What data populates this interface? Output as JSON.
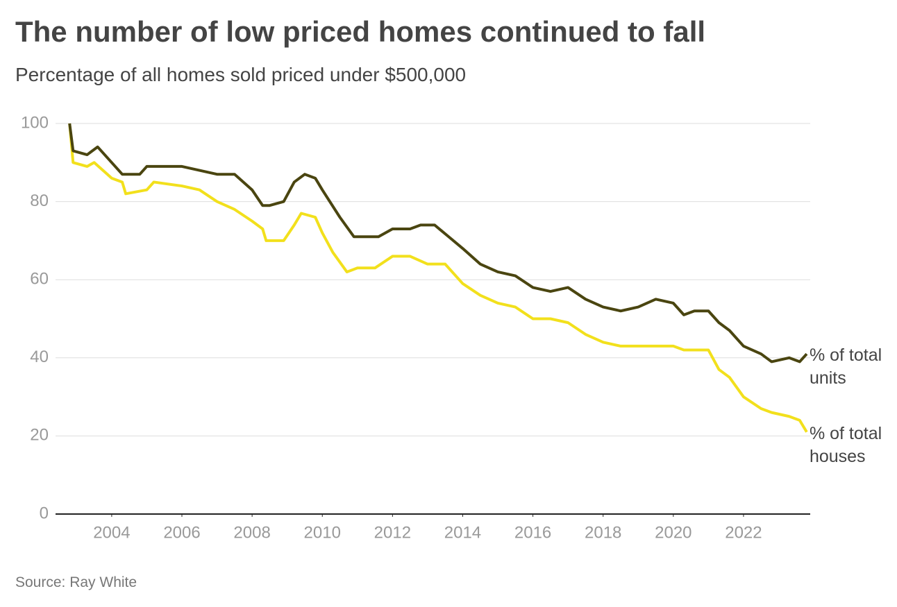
{
  "chart_data": {
    "type": "line",
    "title": "The number of low priced homes continued to fall",
    "subtitle": "Percentage of all homes sold priced under $500,000",
    "source": "Source: Ray White",
    "xlim": [
      2002.4,
      2023.9
    ],
    "xticks": [
      2004,
      2006,
      2008,
      2010,
      2012,
      2014,
      2016,
      2018,
      2020,
      2022
    ],
    "ylim": [
      0,
      100
    ],
    "yticks": [
      0,
      20,
      40,
      60,
      80,
      100
    ],
    "grid": true,
    "series": [
      {
        "name": "% of total units",
        "color": "#4a4510",
        "x": [
          2002.8,
          2002.9,
          2003.3,
          2003.6,
          2004.0,
          2004.3,
          2004.8,
          2005.0,
          2005.5,
          2006.0,
          2006.5,
          2007.0,
          2007.5,
          2008.0,
          2008.3,
          2008.5,
          2008.9,
          2009.2,
          2009.5,
          2009.8,
          2010.0,
          2010.5,
          2010.9,
          2011.2,
          2011.6,
          2012.0,
          2012.5,
          2012.8,
          2013.2,
          2013.6,
          2014.0,
          2014.5,
          2015.0,
          2015.5,
          2016.0,
          2016.5,
          2017.0,
          2017.5,
          2018.0,
          2018.5,
          2019.0,
          2019.5,
          2020.0,
          2020.3,
          2020.6,
          2021.0,
          2021.3,
          2021.6,
          2022.0,
          2022.5,
          2022.8,
          2023.3,
          2023.6,
          2023.8
        ],
        "values": [
          100,
          93,
          92,
          94,
          90,
          87,
          87,
          89,
          89,
          89,
          88,
          87,
          87,
          83,
          79,
          79,
          80,
          85,
          87,
          86,
          83,
          76,
          71,
          71,
          71,
          73,
          73,
          74,
          74,
          71,
          68,
          64,
          62,
          61,
          58,
          57,
          58,
          55,
          53,
          52,
          53,
          55,
          54,
          51,
          52,
          52,
          49,
          47,
          43,
          41,
          39,
          40,
          39,
          41
        ]
      },
      {
        "name": "% of total houses",
        "color": "#f2e01c",
        "x": [
          2002.8,
          2002.9,
          2003.3,
          2003.5,
          2004.0,
          2004.3,
          2004.4,
          2005.0,
          2005.2,
          2006.0,
          2006.5,
          2007.0,
          2007.5,
          2008.0,
          2008.3,
          2008.4,
          2008.9,
          2009.2,
          2009.4,
          2009.8,
          2010.0,
          2010.3,
          2010.7,
          2011.0,
          2011.5,
          2012.0,
          2012.5,
          2013.0,
          2013.5,
          2014.0,
          2014.5,
          2015.0,
          2015.5,
          2016.0,
          2016.5,
          2017.0,
          2017.5,
          2018.0,
          2018.5,
          2019.0,
          2019.5,
          2020.0,
          2020.3,
          2021.0,
          2021.3,
          2021.6,
          2022.0,
          2022.5,
          2022.8,
          2023.3,
          2023.6,
          2023.8
        ],
        "values": [
          100,
          90,
          89,
          90,
          86,
          85,
          82,
          83,
          85,
          84,
          83,
          80,
          78,
          75,
          73,
          70,
          70,
          74,
          77,
          76,
          72,
          67,
          62,
          63,
          63,
          66,
          66,
          64,
          64,
          59,
          56,
          54,
          53,
          50,
          50,
          49,
          46,
          44,
          43,
          43,
          43,
          43,
          42,
          42,
          37,
          35,
          30,
          27,
          26,
          25,
          24,
          21
        ]
      }
    ]
  }
}
